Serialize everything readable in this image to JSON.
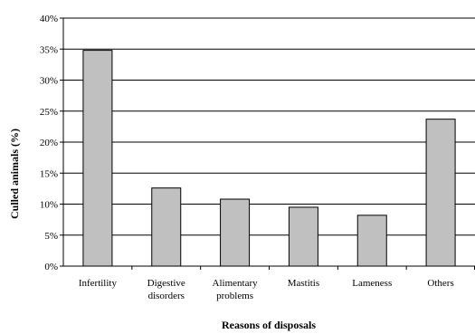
{
  "chart_data": {
    "type": "bar",
    "categories": [
      [
        "Infertility"
      ],
      [
        "Digestive",
        "disorders"
      ],
      [
        "Alimentary",
        "problems"
      ],
      [
        "Mastitis"
      ],
      [
        "Lameness"
      ],
      [
        "Others"
      ]
    ],
    "values": [
      34.8,
      12.6,
      10.8,
      9.5,
      8.2,
      23.7
    ],
    "ylabel": "Culled animals (%)",
    "xlabel": "Reasons of disposals",
    "ylim": [
      0,
      40
    ],
    "yticks": [
      "0%",
      "5%",
      "10%",
      "15%",
      "20%",
      "25%",
      "30%",
      "35%",
      "40%"
    ],
    "grid": true,
    "bar_color": "#c0c0c0",
    "bar_stroke": "#000000"
  }
}
